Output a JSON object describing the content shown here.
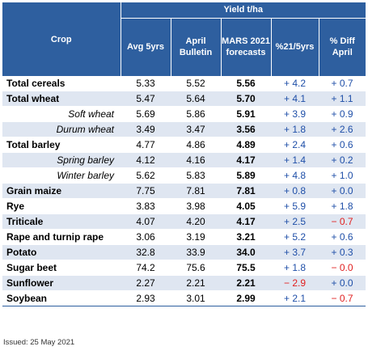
{
  "header": {
    "yield_label": "Yield t/ha",
    "crop_label": "Crop",
    "cols": [
      "Avg 5yrs",
      "April Bulletin",
      "MARS 2021 forecasts",
      "%21/5yrs",
      "% Diff April"
    ]
  },
  "rows": [
    {
      "crop": "Total cereals",
      "level": "main",
      "avg": "5.33",
      "april": "5.52",
      "mars": "5.56",
      "p5": "+ 4.2",
      "pa": "+ 0.7"
    },
    {
      "crop": "Total wheat",
      "level": "main",
      "avg": "5.47",
      "april": "5.64",
      "mars": "5.70",
      "p5": "+ 4.1",
      "pa": "+ 1.1"
    },
    {
      "crop": "Soft wheat",
      "level": "sub",
      "avg": "5.69",
      "april": "5.86",
      "mars": "5.91",
      "p5": "+ 3.9",
      "pa": "+ 0.9"
    },
    {
      "crop": "Durum wheat",
      "level": "sub",
      "avg": "3.49",
      "april": "3.47",
      "mars": "3.56",
      "p5": "+ 1.8",
      "pa": "+ 2.6"
    },
    {
      "crop": "Total barley",
      "level": "main",
      "avg": "4.77",
      "april": "4.86",
      "mars": "4.89",
      "p5": "+ 2.4",
      "pa": "+ 0.6"
    },
    {
      "crop": "Spring barley",
      "level": "sub",
      "avg": "4.12",
      "april": "4.16",
      "mars": "4.17",
      "p5": "+ 1.4",
      "pa": "+ 0.2"
    },
    {
      "crop": "Winter barley",
      "level": "sub",
      "avg": "5.62",
      "april": "5.83",
      "mars": "5.89",
      "p5": "+ 4.8",
      "pa": "+ 1.0"
    },
    {
      "crop": "Grain maize",
      "level": "main",
      "avg": "7.75",
      "april": "7.81",
      "mars": "7.81",
      "p5": "+ 0.8",
      "pa": "+ 0.0"
    },
    {
      "crop": "Rye",
      "level": "main",
      "avg": "3.83",
      "april": "3.98",
      "mars": "4.05",
      "p5": "+ 5.9",
      "pa": "+ 1.8"
    },
    {
      "crop": "Triticale",
      "level": "main",
      "avg": "4.07",
      "april": "4.20",
      "mars": "4.17",
      "p5": "+ 2.5",
      "pa": "− 0.7"
    },
    {
      "crop": "Rape and turnip rape",
      "level": "main",
      "avg": "3.06",
      "april": "3.19",
      "mars": "3.21",
      "p5": "+ 5.2",
      "pa": "+ 0.6"
    },
    {
      "crop": "Potato",
      "level": "main",
      "avg": "32.8",
      "april": "33.9",
      "mars": "34.0",
      "p5": "+ 3.7",
      "pa": "+ 0.3"
    },
    {
      "crop": "Sugar beet",
      "level": "main",
      "avg": "74.2",
      "april": "75.6",
      "mars": "75.5",
      "p5": "+ 1.8",
      "pa": "− 0.0"
    },
    {
      "crop": "Sunflower",
      "level": "main",
      "avg": "2.27",
      "april": "2.21",
      "mars": "2.21",
      "p5": "− 2.9",
      "pa": "+ 0.0"
    },
    {
      "crop": "Soybean",
      "level": "main",
      "avg": "2.93",
      "april": "3.01",
      "mars": "2.99",
      "p5": "+ 2.1",
      "pa": "− 0.7"
    }
  ],
  "footer": {
    "issued": "Issued: 25 May 2021"
  },
  "colors": {
    "header_bg": "#2e5f9f",
    "stripe": "#dfe6f1",
    "positive": "#1f4fa8",
    "negative": "#e02020"
  }
}
